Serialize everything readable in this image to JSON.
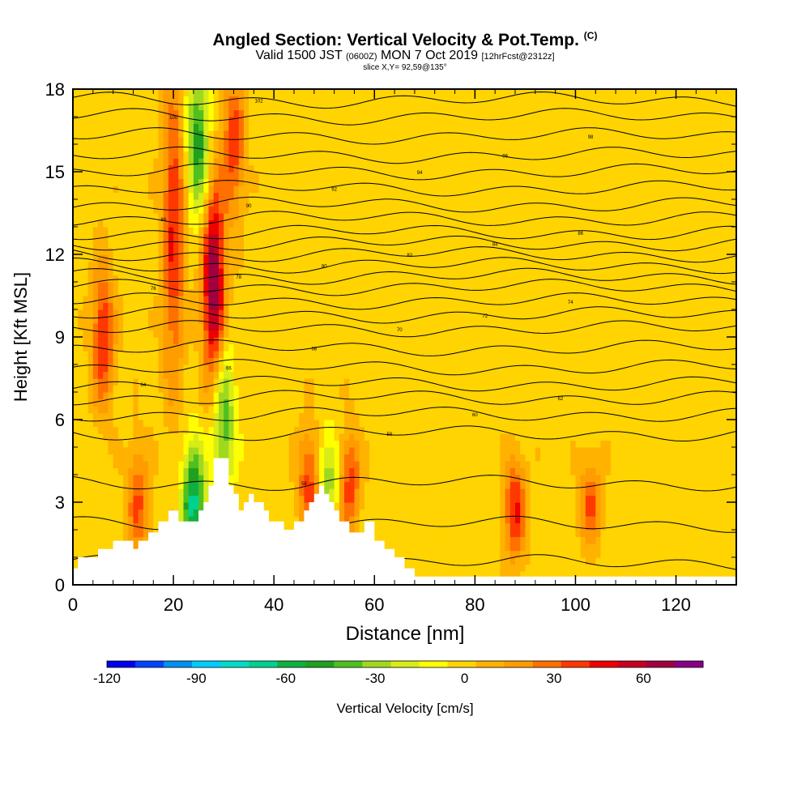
{
  "header": {
    "title": "Angled Section: Vertical Velocity & Pot.Temp.",
    "copyright": "(C)",
    "valid_prefix": "Valid 1500 JST",
    "valid_zulu": "(0600Z)",
    "valid_date": "MON 7 Oct 2019",
    "valid_fcst": "[12hrFcst@2312z]",
    "slice": "slice X,Y= 92,59@135°"
  },
  "colors": {
    "frame": "#000000",
    "terrain": "#ffffff",
    "contour": "#000000"
  },
  "chart_data": {
    "type": "heatmap",
    "xlabel": "Distance [nm]",
    "ylabel": "Height [Kft MSL]",
    "xlim": [
      0,
      132
    ],
    "ylim": [
      0,
      18
    ],
    "x_ticks": [
      "0",
      "20",
      "40",
      "60",
      "80",
      "100",
      "120"
    ],
    "y_ticks": [
      "0",
      "3",
      "6",
      "9",
      "12",
      "15",
      "18"
    ],
    "colorbar": {
      "label": "Vertical Velocity [cm/s]",
      "range": [
        -120,
        80
      ],
      "step": 10,
      "tick_labels": [
        "-120",
        "-90",
        "-60",
        "-30",
        "0",
        "30",
        "60"
      ],
      "colors": [
        "#0000ee",
        "#0044ff",
        "#0090f0",
        "#00ccff",
        "#00dcc8",
        "#00d090",
        "#10b040",
        "#20a020",
        "#50c020",
        "#a0d820",
        "#d8ec18",
        "#ffff00",
        "#ffd400",
        "#ffb200",
        "#ff9c00",
        "#ff7000",
        "#ff3800",
        "#ee0000",
        "#c80020",
        "#a00040",
        "#880088"
      ]
    },
    "updrafts": [
      {
        "x": 6,
        "z_low": 7,
        "z_high": 11,
        "w": 45
      },
      {
        "x": 13,
        "z_low": 1.5,
        "z_high": 4.5,
        "w": 35
      },
      {
        "x": 20,
        "z_low": 8,
        "z_high": 18,
        "w": 45
      },
      {
        "x": 28,
        "z_low": 8,
        "z_high": 14,
        "w": 75
      },
      {
        "x": 32,
        "z_low": 14,
        "z_high": 18,
        "w": 40
      },
      {
        "x": 47,
        "z_low": 2.5,
        "z_high": 5,
        "w": 40
      },
      {
        "x": 55,
        "z_low": 2.5,
        "z_high": 5,
        "w": 40
      },
      {
        "x": 88,
        "z_low": 1.5,
        "z_high": 4,
        "w": 45
      },
      {
        "x": 103,
        "z_low": 2,
        "z_high": 4,
        "w": 35
      }
    ],
    "downdrafts": [
      {
        "x": 24,
        "z_low": 1.5,
        "z_high": 4.5,
        "w": -70
      },
      {
        "x": 25,
        "z_low": 14,
        "z_high": 18,
        "w": -55
      },
      {
        "x": 30,
        "z_low": 4,
        "z_high": 8,
        "w": -45
      },
      {
        "x": 51,
        "z_low": 3,
        "z_high": 5,
        "w": -35
      }
    ],
    "terrain_profile": {
      "x": [
        0,
        1,
        1,
        5,
        5,
        8,
        8,
        12,
        12,
        13,
        13,
        15,
        15,
        17,
        17,
        19,
        19,
        21,
        21,
        25,
        25,
        26,
        26,
        27,
        27,
        28,
        28,
        31,
        31,
        32,
        32,
        33,
        33,
        34,
        34,
        35,
        35,
        36,
        36,
        38,
        38,
        39,
        39,
        42,
        42,
        44,
        44,
        46,
        46,
        47,
        47,
        48,
        48,
        49,
        49,
        50,
        50,
        51,
        51,
        52,
        52,
        53,
        53,
        55,
        55,
        58,
        58,
        60,
        60,
        62,
        62,
        64,
        64,
        66,
        66,
        68,
        68,
        70,
        70,
        132
      ],
      "z": [
        0.6,
        0.6,
        1.0,
        1.0,
        1.3,
        1.3,
        1.6,
        1.6,
        1.3,
        1.3,
        1.6,
        1.6,
        1.9,
        1.9,
        2.3,
        2.3,
        2.7,
        2.7,
        2.3,
        2.3,
        2.7,
        2.7,
        3.0,
        3.0,
        3.6,
        3.6,
        4.6,
        4.6,
        3.6,
        3.6,
        3.3,
        3.3,
        2.7,
        2.7,
        3.0,
        3.0,
        3.3,
        3.3,
        3.0,
        3.0,
        2.7,
        2.7,
        2.3,
        2.3,
        2.0,
        2.0,
        2.3,
        2.3,
        2.7,
        2.7,
        3.0,
        3.0,
        3.3,
        3.3,
        3.6,
        3.6,
        3.3,
        3.3,
        3.0,
        3.0,
        2.7,
        2.7,
        2.3,
        2.3,
        1.9,
        1.9,
        2.3,
        2.3,
        1.6,
        1.6,
        1.3,
        1.3,
        1.0,
        1.0,
        0.6,
        0.6,
        0.3,
        0.3,
        0.3,
        0.3
      ]
    },
    "theta_contours": [
      {
        "z": 0.8,
        "label": "52"
      },
      {
        "z": 2.2,
        "label": ""
      },
      {
        "z": 3.7,
        "label": "56"
      },
      {
        "z": 5.5,
        "label": "58"
      },
      {
        "z": 6.2,
        "label": "60"
      },
      {
        "z": 6.8,
        "label": "62"
      },
      {
        "z": 7.3,
        "label": "64"
      },
      {
        "z": 7.9,
        "label": "66"
      },
      {
        "z": 8.6,
        "label": "68"
      },
      {
        "z": 9.3,
        "label": "70"
      },
      {
        "z": 9.8,
        "label": "72"
      },
      {
        "z": 10.3,
        "label": "74"
      },
      {
        "z": 10.8,
        "label": "76"
      },
      {
        "z": 11.2,
        "label": "78"
      },
      {
        "z": 11.6,
        "label": "80"
      },
      {
        "z": 12.0,
        "label": "82"
      },
      {
        "z": 12.4,
        "label": "84"
      },
      {
        "z": 12.8,
        "label": "86"
      },
      {
        "z": 13.3,
        "label": "88"
      },
      {
        "z": 13.8,
        "label": "90"
      },
      {
        "z": 14.4,
        "label": "92"
      },
      {
        "z": 15.0,
        "label": "94"
      },
      {
        "z": 15.6,
        "label": "96"
      },
      {
        "z": 16.3,
        "label": "98"
      },
      {
        "z": 17.0,
        "label": "100"
      },
      {
        "z": 17.6,
        "label": "102"
      }
    ]
  }
}
